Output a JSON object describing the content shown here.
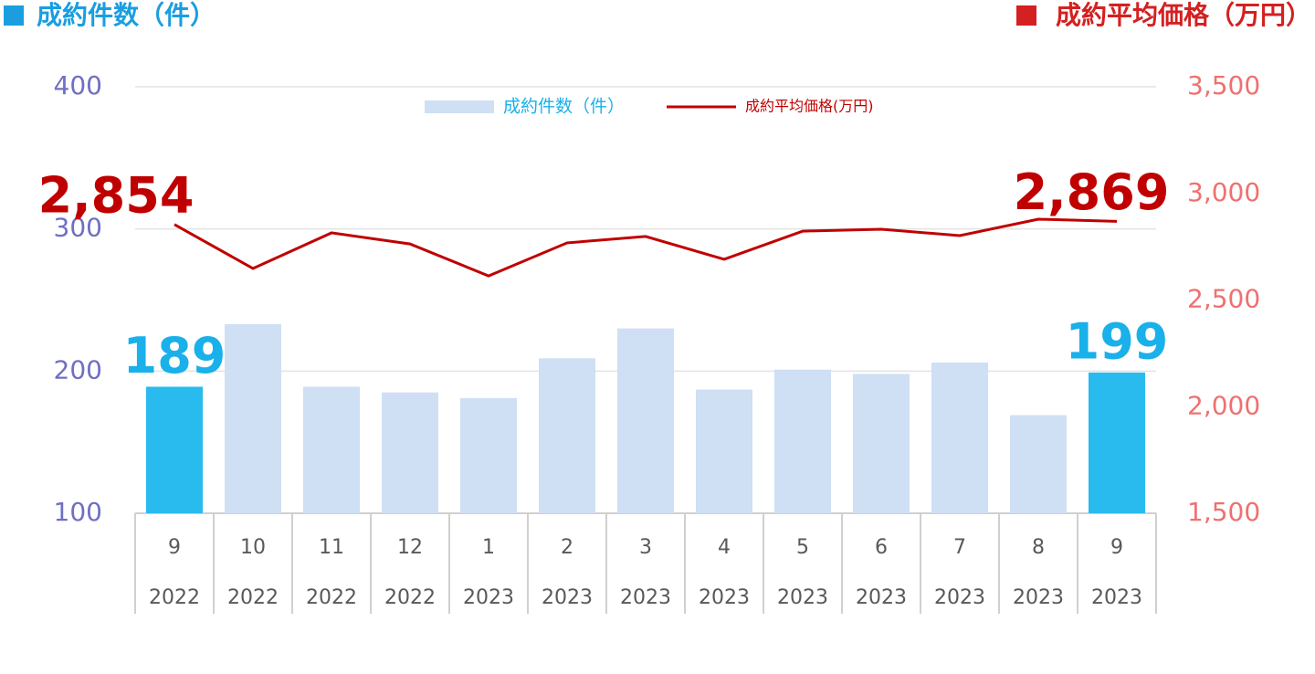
{
  "chart_data": {
    "type": "bar_line",
    "left_title": "成約件数（件）",
    "right_title": "成約平均価格（万円）",
    "left_title_color": "#1a9ee0",
    "right_title_color": "#d42020",
    "categories": [
      "9",
      "10",
      "11",
      "12",
      "1",
      "2",
      "3",
      "4",
      "5",
      "6",
      "7",
      "8",
      "9"
    ],
    "years": [
      "2022",
      "2022",
      "2022",
      "2022",
      "2023",
      "2023",
      "2023",
      "2023",
      "2023",
      "2023",
      "2023",
      "2023",
      "2023"
    ],
    "series": [
      {
        "name": "成約件数（件）",
        "type": "bar",
        "axis": "y",
        "color": "#cfdff4",
        "colors": [
          "#29bbee",
          "#cfdff4",
          "#cfdff4",
          "#cfdff4",
          "#cfdff4",
          "#cfdff4",
          "#cfdff4",
          "#cfdff4",
          "#cfdff4",
          "#cfdff4",
          "#cfdff4",
          "#cfdff4",
          "#29bbee"
        ],
        "values": [
          189,
          233,
          189,
          185,
          181,
          209,
          230,
          187,
          201,
          198,
          206,
          169,
          199
        ],
        "value_labels": [
          "189",
          null,
          null,
          null,
          null,
          null,
          null,
          null,
          null,
          null,
          null,
          null,
          "199"
        ],
        "label_color": "#1ab0ea"
      },
      {
        "name": "成約平均価格(万円)",
        "type": "line",
        "axis": "y2",
        "color": "#c00000",
        "values": [
          2854,
          2648,
          2815,
          2763,
          2613,
          2768,
          2798,
          2691,
          2823,
          2832,
          2802,
          2879,
          2869
        ],
        "value_labels": [
          "2,854",
          null,
          null,
          null,
          null,
          null,
          null,
          null,
          null,
          null,
          null,
          null,
          "2,869"
        ],
        "label_color": "#c00000"
      }
    ],
    "ylim": [
      100,
      400
    ],
    "yticks": [
      100,
      200,
      300,
      400
    ],
    "ytick_color": "#6f6fc4",
    "y2lim": [
      1500,
      3500
    ],
    "y2ticks": [
      {
        "value": 1500,
        "label": "1,500"
      },
      {
        "value": 2000,
        "label": "2,000"
      },
      {
        "value": 2500,
        "label": "2,500"
      },
      {
        "value": 3000,
        "label": "3,000"
      },
      {
        "value": 3500,
        "label": "3,500"
      }
    ],
    "y2tick_color": "#f07070",
    "grid": true
  }
}
